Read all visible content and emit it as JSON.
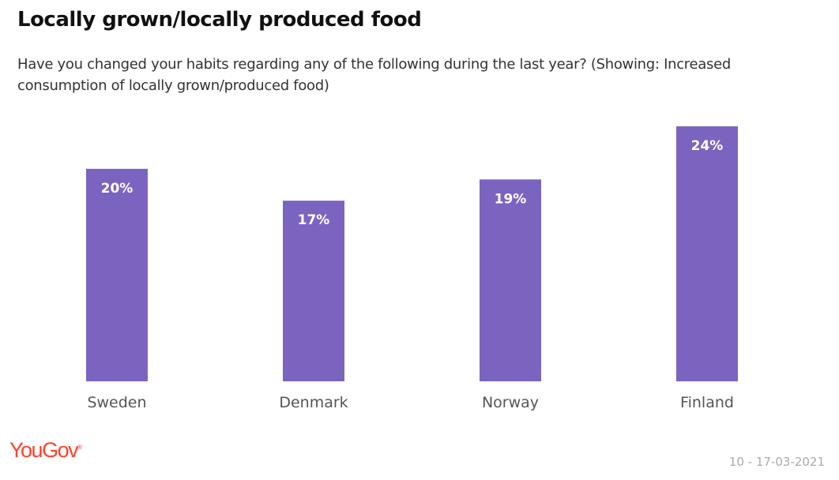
{
  "chart_data": {
    "type": "bar",
    "title": "Locally grown/locally produced food",
    "subtitle": "Have you changed your habits regarding any of the following during the last year? (Showing: Increased consumption of locally grown/produced food)",
    "categories": [
      "Sweden",
      "Denmark",
      "Norway",
      "Finland"
    ],
    "values": [
      20,
      17,
      19,
      24
    ],
    "labels": [
      "20%",
      "17%",
      "19%",
      "24%"
    ],
    "xlabel": "",
    "ylabel": "",
    "ylim": [
      0,
      24
    ],
    "grid": false,
    "bar_color": "#7b64c0"
  },
  "footer": {
    "logo": "YouGov",
    "date": "10 - 17-03-2021"
  }
}
